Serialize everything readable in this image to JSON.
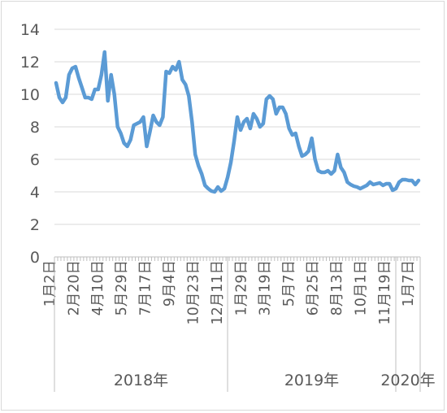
{
  "chart_data": {
    "type": "line",
    "title": "",
    "xlabel": "",
    "ylabel": "",
    "ylim": [
      0,
      14
    ],
    "yticks": [
      0,
      2,
      4,
      6,
      8,
      10,
      12,
      14
    ],
    "grid": "horizontal",
    "legend": "none",
    "colors": {
      "line": "#5B9BD5",
      "grid": "#d9d9d9",
      "axis": "#bfbfbf",
      "text": "#595959"
    },
    "x_tick_labels": [
      "1月2日",
      "2月20日",
      "4月10日",
      "5月29日",
      "7月17日",
      "9月4日",
      "10月23日",
      "12月11日",
      "1月29日",
      "3月19日",
      "5月7日",
      "6月25日",
      "8月13日",
      "10月1日",
      "11月19日",
      "1月7日"
    ],
    "year_groups": [
      {
        "label": "2018年"
      },
      {
        "label": "2019年"
      },
      {
        "label": "2020年"
      }
    ],
    "series": [
      {
        "values": [
          10.7,
          9.8,
          9.5,
          9.8,
          11.2,
          11.6,
          11.7,
          11.0,
          10.4,
          9.8,
          9.8,
          9.7,
          10.3,
          10.3,
          11.2,
          12.6,
          9.6,
          11.2,
          10.0,
          8.0,
          7.6,
          7.0,
          6.8,
          7.2,
          8.1,
          8.2,
          8.3,
          8.6,
          6.8,
          7.7,
          8.7,
          8.3,
          8.1,
          8.6,
          11.4,
          11.3,
          11.7,
          11.5,
          12.0,
          10.9,
          10.6,
          9.9,
          8.3,
          6.3,
          5.6,
          5.1,
          4.4,
          4.2,
          4.05,
          4.0,
          4.3,
          4.05,
          4.2,
          4.9,
          5.8,
          7.1,
          8.6,
          7.8,
          8.3,
          8.5,
          7.9,
          8.8,
          8.5,
          8.0,
          8.2,
          9.7,
          9.9,
          9.7,
          8.8,
          9.2,
          9.2,
          8.8,
          7.9,
          7.5,
          7.6,
          6.8,
          6.2,
          6.3,
          6.5,
          7.3,
          6.0,
          5.3,
          5.2,
          5.2,
          5.3,
          5.1,
          5.3,
          6.3,
          5.5,
          5.2,
          4.6,
          4.45,
          4.35,
          4.3,
          4.2,
          4.3,
          4.4,
          4.6,
          4.45,
          4.5,
          4.55,
          4.4,
          4.5,
          4.5,
          4.1,
          4.2,
          4.6,
          4.75,
          4.75,
          4.7,
          4.7,
          4.45,
          4.7
        ]
      }
    ]
  }
}
